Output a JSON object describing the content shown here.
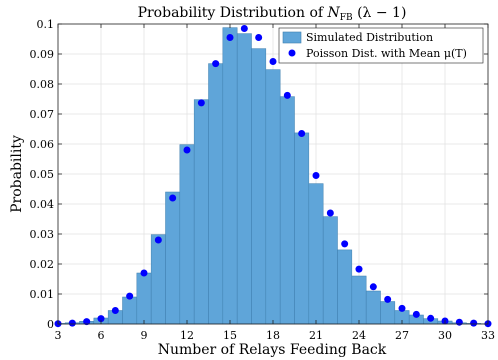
{
  "chart_data": {
    "type": "bar",
    "title_prefix": "Probability Distribution of ",
    "title_symbol": "N",
    "title_subscript": "FB",
    "title_suffix": " (λ − 1)",
    "xlabel": "Number of Relays Feeding Back",
    "ylabel": "Probability",
    "xlim": [
      3,
      33
    ],
    "ylim": [
      0,
      0.1
    ],
    "xticks": [
      3,
      6,
      9,
      12,
      15,
      18,
      21,
      24,
      27,
      30,
      33
    ],
    "xtick_labels": [
      "3",
      "6",
      "9",
      "12",
      "15",
      "18",
      "21",
      "24",
      "27",
      "30",
      "33"
    ],
    "yticks": [
      0,
      0.01,
      0.02,
      0.03,
      0.04,
      0.05,
      0.06,
      0.07,
      0.08,
      0.09,
      0.1
    ],
    "ytick_labels": [
      "0",
      "0.01",
      "0.02",
      "0.03",
      "0.04",
      "0.05",
      "0.06",
      "0.07",
      "0.08",
      "0.09",
      "0.1"
    ],
    "grid": true,
    "legend_position": "top-right",
    "series": [
      {
        "name": "Simulated Distribution",
        "kind": "bar",
        "color": "#5fa5d9",
        "edge": "#3f7fae",
        "x": [
          3,
          4,
          5,
          6,
          7,
          8,
          9,
          10,
          11,
          12,
          13,
          14,
          15,
          16,
          17,
          18,
          19,
          20,
          21,
          22,
          23,
          24,
          25,
          26,
          27,
          28,
          29,
          30,
          31,
          32,
          33
        ],
        "values": [
          0.0002,
          0.0004,
          0.0009,
          0.002,
          0.0045,
          0.009,
          0.017,
          0.0298,
          0.044,
          0.0598,
          0.0748,
          0.0868,
          0.0988,
          0.0968,
          0.0918,
          0.0848,
          0.0758,
          0.0637,
          0.0468,
          0.0358,
          0.0247,
          0.016,
          0.011,
          0.0075,
          0.0045,
          0.003,
          0.0018,
          0.001,
          0.0004,
          0.0002,
          0.0001
        ]
      },
      {
        "name": "Poisson Dist. with Mean μ(T)",
        "kind": "scatter",
        "color": "#0000ff",
        "x": [
          3,
          4,
          5,
          6,
          7,
          8,
          9,
          10,
          11,
          12,
          13,
          14,
          15,
          16,
          17,
          18,
          19,
          20,
          21,
          22,
          23,
          24,
          25,
          26,
          27,
          28,
          29,
          30,
          31,
          32,
          33
        ],
        "values": [
          0.0001,
          0.0003,
          0.0008,
          0.0018,
          0.0045,
          0.0093,
          0.017,
          0.028,
          0.042,
          0.058,
          0.0737,
          0.0868,
          0.0955,
          0.0985,
          0.0955,
          0.0875,
          0.0762,
          0.0635,
          0.0495,
          0.037,
          0.0267,
          0.0183,
          0.0124,
          0.0082,
          0.0052,
          0.0032,
          0.0019,
          0.001,
          0.0006,
          0.0003,
          0.0001
        ]
      }
    ]
  }
}
